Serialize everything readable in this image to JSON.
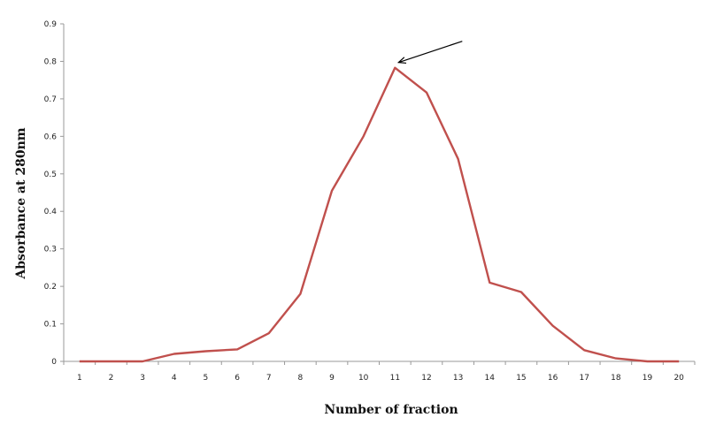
{
  "chart_data": {
    "type": "line",
    "title": "",
    "xlabel": "Number of  fraction",
    "ylabel": "Absorbance at 280nm",
    "categories": [
      "1",
      "2",
      "3",
      "4",
      "5",
      "6",
      "7",
      "8",
      "9",
      "10",
      "11",
      "12",
      "13",
      "14",
      "15",
      "16",
      "17",
      "18",
      "19",
      "20"
    ],
    "series": [
      {
        "values": [
          0,
          0,
          0,
          0.02,
          0.027,
          0.032,
          0.075,
          0.18,
          0.455,
          0.6,
          0.783,
          0.717,
          0.54,
          0.21,
          0.185,
          0.095,
          0.03,
          0.008,
          0,
          0
        ],
        "color": "#c0504d"
      }
    ],
    "yticks": [
      "0",
      "0.1",
      "0.2",
      "0.3",
      "0.4",
      "0.5",
      "0.6",
      "0.7",
      "0.8",
      "0.9"
    ],
    "ylim": [
      0,
      0.9
    ],
    "grid": false,
    "legend": "none",
    "annotation": {
      "type": "arrow",
      "points_to": {
        "x": "11",
        "y": 0.783
      }
    }
  }
}
